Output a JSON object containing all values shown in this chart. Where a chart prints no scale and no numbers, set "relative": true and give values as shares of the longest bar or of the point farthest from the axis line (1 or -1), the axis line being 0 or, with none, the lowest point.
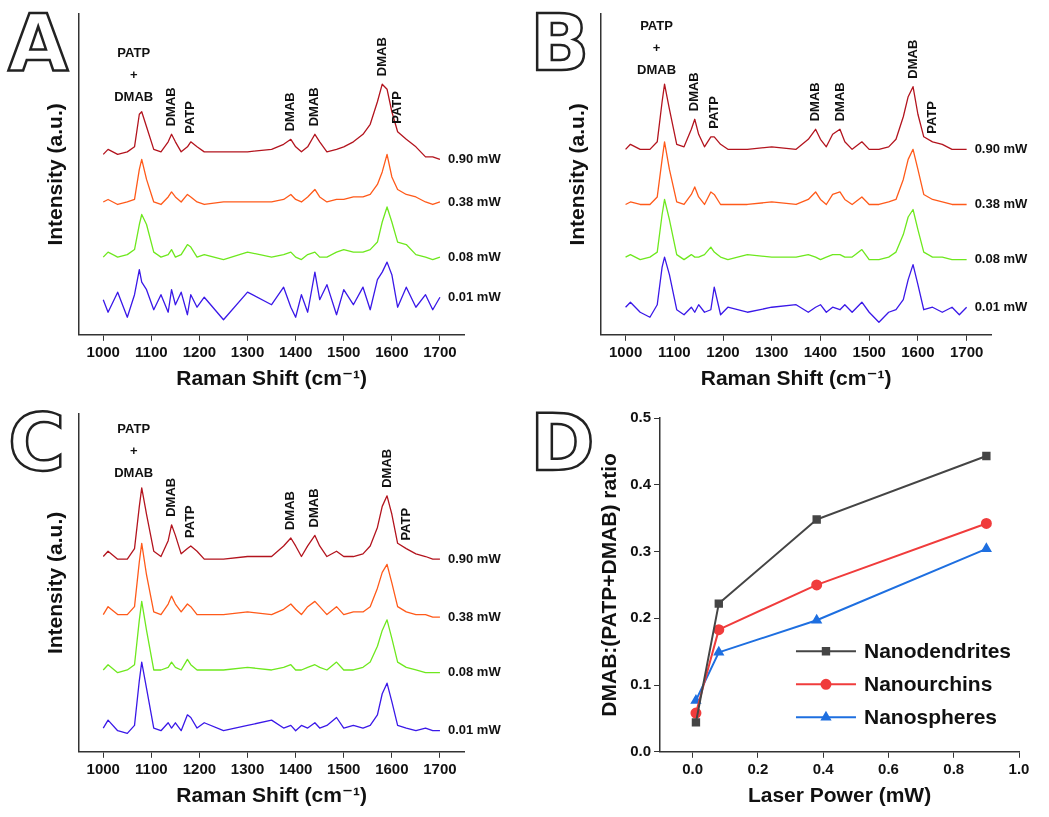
{
  "chart_data": [
    {
      "type": "line",
      "title": "A",
      "xlabel": "Raman Shift (cm⁻¹)",
      "ylabel": "Intensity (a.u.)",
      "relative": true,
      "marker": "none",
      "xlim": [
        950,
        1750
      ],
      "xticks": [
        1000,
        1100,
        1200,
        1300,
        1400,
        1500,
        1600,
        1700
      ],
      "x": [
        1000,
        1010,
        1030,
        1050,
        1065,
        1075,
        1080,
        1090,
        1105,
        1120,
        1135,
        1142,
        1150,
        1162,
        1175,
        1182,
        1195,
        1210,
        1250,
        1300,
        1350,
        1375,
        1390,
        1400,
        1412,
        1425,
        1440,
        1450,
        1465,
        1485,
        1500,
        1520,
        1540,
        1555,
        1570,
        1580,
        1590,
        1600,
        1612,
        1630,
        1650,
        1670,
        1685,
        1700
      ],
      "series": [
        {
          "name": "0.90 mW",
          "color": "#b3141e",
          "values": [
            0.72,
            0.74,
            0.72,
            0.73,
            0.75,
            0.88,
            0.89,
            0.83,
            0.74,
            0.73,
            0.77,
            0.8,
            0.77,
            0.73,
            0.75,
            0.77,
            0.75,
            0.73,
            0.73,
            0.73,
            0.74,
            0.76,
            0.78,
            0.75,
            0.73,
            0.75,
            0.8,
            0.77,
            0.73,
            0.74,
            0.75,
            0.77,
            0.8,
            0.84,
            0.93,
            1.0,
            0.98,
            0.89,
            0.81,
            0.78,
            0.75,
            0.71,
            0.71,
            0.7
          ]
        },
        {
          "name": "0.38 mW",
          "color": "#ff5a1a",
          "values": [
            0.53,
            0.54,
            0.52,
            0.53,
            0.54,
            0.66,
            0.7,
            0.62,
            0.53,
            0.52,
            0.55,
            0.57,
            0.55,
            0.53,
            0.56,
            0.55,
            0.53,
            0.52,
            0.53,
            0.53,
            0.53,
            0.54,
            0.56,
            0.54,
            0.53,
            0.55,
            0.58,
            0.55,
            0.53,
            0.54,
            0.54,
            0.55,
            0.55,
            0.56,
            0.6,
            0.65,
            0.72,
            0.63,
            0.58,
            0.56,
            0.55,
            0.53,
            0.52,
            0.53
          ]
        },
        {
          "name": "0.08 mW",
          "color": "#6ee81e",
          "values": [
            0.31,
            0.33,
            0.31,
            0.32,
            0.34,
            0.44,
            0.48,
            0.44,
            0.33,
            0.31,
            0.32,
            0.34,
            0.31,
            0.32,
            0.36,
            0.35,
            0.31,
            0.32,
            0.3,
            0.33,
            0.31,
            0.32,
            0.33,
            0.31,
            0.3,
            0.32,
            0.33,
            0.31,
            0.31,
            0.33,
            0.34,
            0.33,
            0.33,
            0.34,
            0.37,
            0.45,
            0.51,
            0.45,
            0.37,
            0.36,
            0.32,
            0.31,
            0.3,
            0.31
          ]
        },
        {
          "name": "0.01 mW",
          "color": "#3a18e8",
          "values": [
            0.14,
            0.09,
            0.17,
            0.07,
            0.16,
            0.26,
            0.21,
            0.18,
            0.1,
            0.16,
            0.09,
            0.18,
            0.12,
            0.17,
            0.08,
            0.16,
            0.11,
            0.15,
            0.06,
            0.17,
            0.12,
            0.19,
            0.11,
            0.07,
            0.16,
            0.09,
            0.25,
            0.14,
            0.2,
            0.08,
            0.18,
            0.12,
            0.19,
            0.1,
            0.22,
            0.25,
            0.29,
            0.24,
            0.11,
            0.19,
            0.11,
            0.16,
            0.1,
            0.15
          ]
        }
      ],
      "annotations": [
        {
          "text": "PATP\n+\nDMAB",
          "x": 1080,
          "y": 0.89
        },
        {
          "text": "DMAB",
          "x": 1142,
          "y": 0.8
        },
        {
          "text": "PATP",
          "x": 1182,
          "y": 0.77
        },
        {
          "text": "DMAB",
          "x": 1390,
          "y": 0.78
        },
        {
          "text": "DMAB",
          "x": 1440,
          "y": 0.8
        },
        {
          "text": "DMAB",
          "x": 1580,
          "y": 1.0
        },
        {
          "text": "PATP",
          "x": 1612,
          "y": 0.81
        }
      ]
    },
    {
      "type": "line",
      "title": "B",
      "xlabel": "Raman Shift (cm⁻¹)",
      "ylabel": "Intensity (a.u.)",
      "relative": true,
      "marker": "none",
      "xlim": [
        950,
        1750
      ],
      "xticks": [
        1000,
        1100,
        1200,
        1300,
        1400,
        1500,
        1600,
        1700
      ],
      "x": [
        1000,
        1010,
        1030,
        1050,
        1065,
        1075,
        1080,
        1090,
        1105,
        1120,
        1135,
        1142,
        1150,
        1162,
        1175,
        1182,
        1195,
        1210,
        1250,
        1300,
        1350,
        1375,
        1390,
        1400,
        1412,
        1425,
        1440,
        1450,
        1465,
        1485,
        1500,
        1520,
        1540,
        1555,
        1570,
        1580,
        1590,
        1600,
        1612,
        1630,
        1650,
        1670,
        1685,
        1700
      ],
      "series": [
        {
          "name": "0.90 mW",
          "color": "#b3141e",
          "values": [
            0.74,
            0.76,
            0.74,
            0.74,
            0.77,
            0.93,
            1.0,
            0.9,
            0.76,
            0.75,
            0.82,
            0.86,
            0.8,
            0.75,
            0.79,
            0.79,
            0.76,
            0.74,
            0.74,
            0.75,
            0.74,
            0.78,
            0.82,
            0.78,
            0.75,
            0.8,
            0.82,
            0.77,
            0.74,
            0.77,
            0.74,
            0.74,
            0.75,
            0.78,
            0.87,
            0.95,
            0.99,
            0.88,
            0.79,
            0.77,
            0.76,
            0.74,
            0.74,
            0.74
          ]
        },
        {
          "name": "0.38 mW",
          "color": "#ff5a1a",
          "values": [
            0.52,
            0.53,
            0.52,
            0.52,
            0.55,
            0.7,
            0.77,
            0.66,
            0.53,
            0.52,
            0.56,
            0.59,
            0.55,
            0.52,
            0.57,
            0.56,
            0.52,
            0.52,
            0.52,
            0.53,
            0.52,
            0.54,
            0.57,
            0.54,
            0.52,
            0.56,
            0.57,
            0.54,
            0.52,
            0.55,
            0.52,
            0.52,
            0.53,
            0.54,
            0.62,
            0.7,
            0.74,
            0.66,
            0.56,
            0.54,
            0.53,
            0.52,
            0.52,
            0.52
          ]
        },
        {
          "name": "0.08 mW",
          "color": "#6ee81e",
          "values": [
            0.31,
            0.32,
            0.3,
            0.31,
            0.33,
            0.48,
            0.54,
            0.46,
            0.32,
            0.3,
            0.32,
            0.31,
            0.31,
            0.32,
            0.35,
            0.33,
            0.31,
            0.3,
            0.32,
            0.31,
            0.31,
            0.32,
            0.31,
            0.3,
            0.31,
            0.32,
            0.32,
            0.31,
            0.31,
            0.34,
            0.3,
            0.3,
            0.31,
            0.33,
            0.4,
            0.47,
            0.5,
            0.42,
            0.33,
            0.31,
            0.31,
            0.3,
            0.3,
            0.3
          ]
        },
        {
          "name": "0.01 mW",
          "color": "#3a18e8",
          "values": [
            0.11,
            0.13,
            0.09,
            0.07,
            0.12,
            0.27,
            0.31,
            0.24,
            0.1,
            0.08,
            0.11,
            0.09,
            0.12,
            0.09,
            0.1,
            0.19,
            0.08,
            0.11,
            0.09,
            0.11,
            0.12,
            0.09,
            0.11,
            0.12,
            0.09,
            0.11,
            0.1,
            0.12,
            0.09,
            0.13,
            0.09,
            0.05,
            0.09,
            0.1,
            0.14,
            0.22,
            0.28,
            0.2,
            0.1,
            0.11,
            0.09,
            0.11,
            0.08,
            0.11
          ]
        }
      ],
      "annotations": [
        {
          "text": "PATP\n+\nDMAB",
          "x": 1080,
          "y": 1.0
        },
        {
          "text": "DMAB",
          "x": 1142,
          "y": 0.86
        },
        {
          "text": "PATP",
          "x": 1182,
          "y": 0.79
        },
        {
          "text": "DMAB",
          "x": 1390,
          "y": 0.82
        },
        {
          "text": "DMAB",
          "x": 1440,
          "y": 0.82
        },
        {
          "text": "DMAB",
          "x": 1590,
          "y": 0.99
        },
        {
          "text": "PATP",
          "x": 1630,
          "y": 0.77
        }
      ]
    },
    {
      "type": "line",
      "title": "C",
      "xlabel": "Raman Shift (cm⁻¹)",
      "ylabel": "Intensity (a.u.)",
      "relative": true,
      "marker": "none",
      "xlim": [
        950,
        1750
      ],
      "xticks": [
        1000,
        1100,
        1200,
        1300,
        1400,
        1500,
        1600,
        1700
      ],
      "x": [
        1000,
        1010,
        1030,
        1050,
        1065,
        1075,
        1080,
        1090,
        1105,
        1120,
        1135,
        1142,
        1150,
        1162,
        1175,
        1182,
        1195,
        1210,
        1250,
        1300,
        1350,
        1375,
        1390,
        1400,
        1412,
        1425,
        1440,
        1450,
        1465,
        1485,
        1500,
        1520,
        1540,
        1555,
        1570,
        1580,
        1590,
        1600,
        1612,
        1630,
        1650,
        1670,
        1685,
        1700
      ],
      "series": [
        {
          "name": "0.90 mW",
          "color": "#b3141e",
          "values": [
            0.74,
            0.76,
            0.73,
            0.73,
            0.77,
            0.93,
            1.0,
            0.9,
            0.76,
            0.74,
            0.8,
            0.86,
            0.82,
            0.75,
            0.77,
            0.78,
            0.76,
            0.73,
            0.73,
            0.74,
            0.74,
            0.78,
            0.81,
            0.78,
            0.74,
            0.78,
            0.82,
            0.78,
            0.74,
            0.76,
            0.74,
            0.74,
            0.75,
            0.78,
            0.85,
            0.93,
            0.97,
            0.9,
            0.79,
            0.77,
            0.75,
            0.74,
            0.73,
            0.73
          ]
        },
        {
          "name": "0.38 mW",
          "color": "#ff5a1a",
          "values": [
            0.52,
            0.55,
            0.52,
            0.52,
            0.55,
            0.72,
            0.79,
            0.67,
            0.53,
            0.52,
            0.56,
            0.59,
            0.56,
            0.53,
            0.56,
            0.55,
            0.52,
            0.52,
            0.52,
            0.53,
            0.52,
            0.54,
            0.56,
            0.54,
            0.52,
            0.55,
            0.57,
            0.55,
            0.52,
            0.55,
            0.52,
            0.53,
            0.53,
            0.55,
            0.62,
            0.68,
            0.71,
            0.64,
            0.55,
            0.53,
            0.52,
            0.52,
            0.51,
            0.51
          ]
        },
        {
          "name": "0.08 mW",
          "color": "#6ee81e",
          "values": [
            0.31,
            0.33,
            0.3,
            0.31,
            0.33,
            0.5,
            0.57,
            0.46,
            0.31,
            0.31,
            0.32,
            0.34,
            0.32,
            0.31,
            0.35,
            0.33,
            0.31,
            0.31,
            0.31,
            0.32,
            0.31,
            0.32,
            0.33,
            0.31,
            0.31,
            0.32,
            0.33,
            0.32,
            0.31,
            0.34,
            0.31,
            0.31,
            0.32,
            0.34,
            0.4,
            0.46,
            0.5,
            0.43,
            0.34,
            0.32,
            0.31,
            0.3,
            0.3,
            0.3
          ]
        },
        {
          "name": "0.01 mW",
          "color": "#3a18e8",
          "values": [
            0.09,
            0.12,
            0.08,
            0.07,
            0.1,
            0.27,
            0.34,
            0.24,
            0.09,
            0.08,
            0.11,
            0.09,
            0.11,
            0.08,
            0.14,
            0.13,
            0.09,
            0.11,
            0.08,
            0.1,
            0.12,
            0.09,
            0.1,
            0.08,
            0.1,
            0.09,
            0.11,
            0.09,
            0.1,
            0.13,
            0.09,
            0.1,
            0.09,
            0.1,
            0.14,
            0.22,
            0.26,
            0.19,
            0.1,
            0.09,
            0.08,
            0.09,
            0.08,
            0.08
          ]
        }
      ],
      "annotations": [
        {
          "text": "PATP\n+\nDMAB",
          "x": 1080,
          "y": 1.0
        },
        {
          "text": "DMAB",
          "x": 1142,
          "y": 0.86
        },
        {
          "text": "PATP",
          "x": 1182,
          "y": 0.78
        },
        {
          "text": "DMAB",
          "x": 1390,
          "y": 0.81
        },
        {
          "text": "DMAB",
          "x": 1440,
          "y": 0.82
        },
        {
          "text": "DMAB",
          "x": 1590,
          "y": 0.97
        },
        {
          "text": "PATP",
          "x": 1630,
          "y": 0.77
        }
      ]
    },
    {
      "type": "line",
      "title": "D",
      "xlabel": "Laser Power (mW)",
      "ylabel": "DMAB:(PATP+DMAB) ratio",
      "legend": "bottom right",
      "xlim": [
        -0.1,
        1.0
      ],
      "xticks": [
        {
          "value": 0,
          "label": "0.0"
        },
        {
          "value": 0.2,
          "label": "0.2"
        },
        {
          "value": 0.4,
          "label": "0.4"
        },
        {
          "value": 0.6,
          "label": "0.6"
        },
        {
          "value": 0.8,
          "label": "0.8"
        },
        {
          "value": 1,
          "label": "1.0"
        }
      ],
      "ylim": [
        0,
        0.5
      ],
      "yticks": [
        {
          "value": 0,
          "label": "0.0"
        },
        {
          "value": 0.1,
          "label": "0.1"
        },
        {
          "value": 0.2,
          "label": "0.2"
        },
        {
          "value": 0.3,
          "label": "0.3"
        },
        {
          "value": 0.4,
          "label": "0.4"
        },
        {
          "value": 0.5,
          "label": "0.5"
        }
      ],
      "x": [
        0.01,
        0.08,
        0.38,
        0.9
      ],
      "series": [
        {
          "name": "Nanodendrites",
          "color": "#454545",
          "marker": "square",
          "values": [
            0.044,
            0.222,
            0.348,
            0.443
          ]
        },
        {
          "name": "Nanourchins",
          "color": "#f03c3c",
          "marker": "circle",
          "values": [
            0.058,
            0.183,
            0.25,
            0.342
          ]
        },
        {
          "name": "Nanospheres",
          "color": "#1e6fe0",
          "marker": "triangle",
          "values": [
            0.077,
            0.149,
            0.197,
            0.304
          ]
        }
      ]
    }
  ]
}
